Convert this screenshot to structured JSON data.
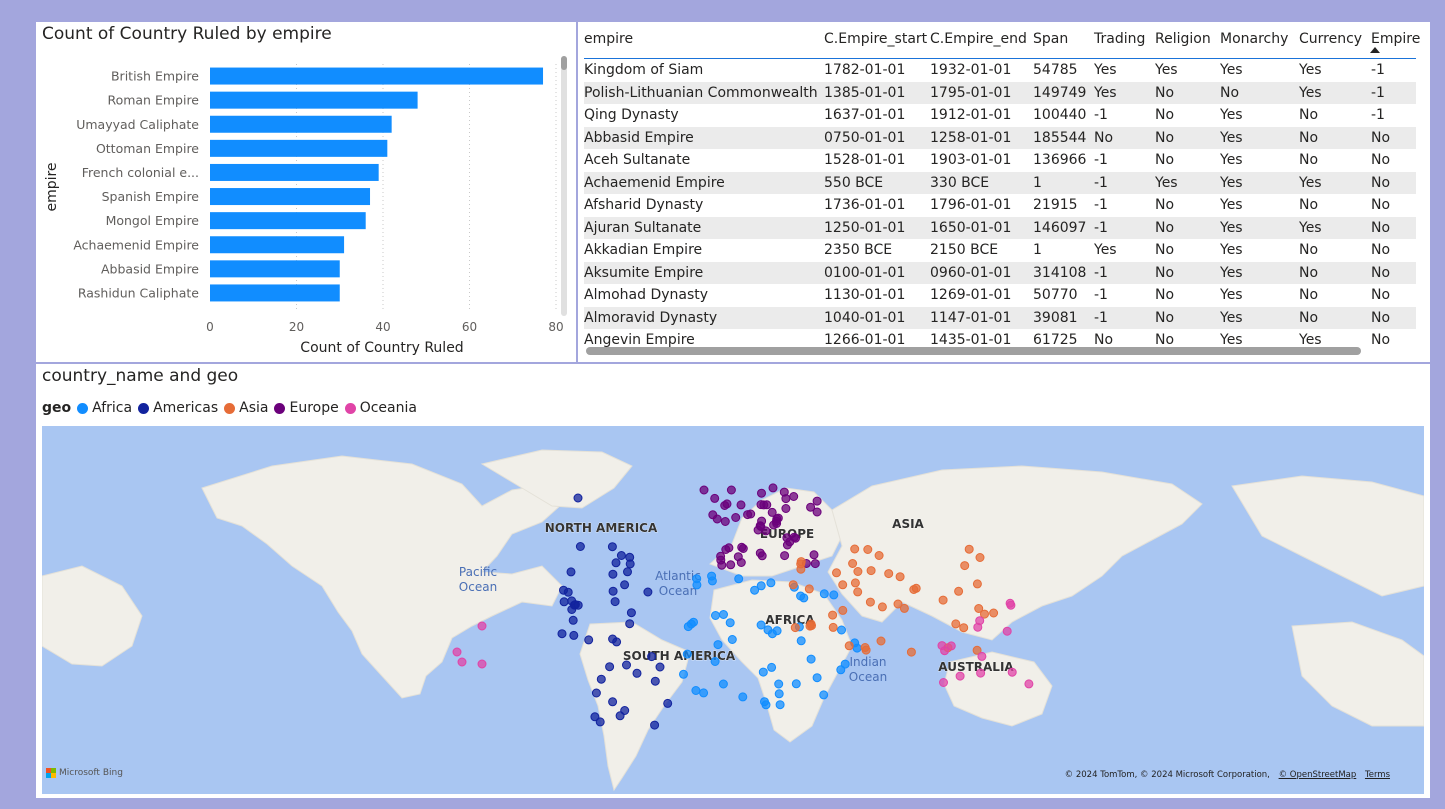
{
  "bar_chart": {
    "title": "Count of Country Ruled by empire",
    "chart_data": {
      "type": "bar",
      "orientation": "horizontal",
      "title": "Count of Country Ruled by empire",
      "xlabel": "Count of Country Ruled",
      "ylabel": "empire",
      "categories": [
        "British Empire",
        "Roman Empire",
        "Umayyad Caliphate",
        "Ottoman Empire",
        "French colonial e...",
        "Spanish Empire",
        "Mongol Empire",
        "Achaemenid Empire",
        "Abbasid Empire",
        "Rashidun Caliphate"
      ],
      "values": [
        77,
        48,
        42,
        41,
        39,
        37,
        36,
        31,
        30,
        30
      ],
      "xlim": [
        0,
        80
      ],
      "xticks": [
        "0",
        "20",
        "40",
        "60",
        "80"
      ],
      "grid": true,
      "bar_color": "#118dff"
    }
  },
  "table": {
    "columns": [
      "empire",
      "C.Empire_start",
      "C.Empire_end",
      "Span",
      "Trading",
      "Religion",
      "Monarchy",
      "Currency",
      "Empire"
    ],
    "rows": [
      [
        "Kingdom of Siam",
        "1782-01-01",
        "1932-01-01",
        "54785",
        "Yes",
        "Yes",
        "Yes",
        "Yes",
        "-1"
      ],
      [
        "Polish-Lithuanian Commonwealth",
        "1385-01-01",
        "1795-01-01",
        "149749",
        "Yes",
        "No",
        "No",
        "Yes",
        "-1"
      ],
      [
        "Qing Dynasty",
        "1637-01-01",
        "1912-01-01",
        "100440",
        "-1",
        "No",
        "Yes",
        "No",
        "-1"
      ],
      [
        "Abbasid Empire",
        "0750-01-01",
        "1258-01-01",
        "185544",
        "No",
        "No",
        "Yes",
        "No",
        "No"
      ],
      [
        "Aceh Sultanate",
        "1528-01-01",
        "1903-01-01",
        "136966",
        "-1",
        "No",
        "Yes",
        "No",
        "No"
      ],
      [
        "Achaemenid Empire",
        "550 BCE",
        "330 BCE",
        "1",
        "-1",
        "Yes",
        "Yes",
        "Yes",
        "No"
      ],
      [
        "Afsharid Dynasty",
        "1736-01-01",
        "1796-01-01",
        "21915",
        "-1",
        "No",
        "Yes",
        "No",
        "No"
      ],
      [
        "Ajuran Sultanate",
        "1250-01-01",
        "1650-01-01",
        "146097",
        "-1",
        "No",
        "Yes",
        "Yes",
        "No"
      ],
      [
        "Akkadian Empire",
        "2350 BCE",
        "2150 BCE",
        "1",
        "Yes",
        "No",
        "Yes",
        "No",
        "No"
      ],
      [
        "Aksumite Empire",
        "0100-01-01",
        "0960-01-01",
        "314108",
        "-1",
        "No",
        "Yes",
        "No",
        "No"
      ],
      [
        "Almohad Dynasty",
        "1130-01-01",
        "1269-01-01",
        "50770",
        "-1",
        "No",
        "Yes",
        "No",
        "No"
      ],
      [
        "Almoravid Dynasty",
        "1040-01-01",
        "1147-01-01",
        "39081",
        "-1",
        "No",
        "Yes",
        "No",
        "No"
      ],
      [
        "Angevin Empire",
        "1266-01-01",
        "1435-01-01",
        "61725",
        "No",
        "No",
        "Yes",
        "Yes",
        "No"
      ]
    ]
  },
  "map": {
    "title": "country_name and geo",
    "legend_title": "geo",
    "legend": [
      {
        "name": "Africa",
        "color": "#118dff"
      },
      {
        "name": "Americas",
        "color": "#12239e"
      },
      {
        "name": "Asia",
        "color": "#e66c37"
      },
      {
        "name": "Europe",
        "color": "#6b007b"
      },
      {
        "name": "Oceania",
        "color": "#e044a7"
      }
    ],
    "labels": {
      "north_america": "NORTH AMERICA",
      "south_america": "SOUTH AMERICA",
      "europe": "EUROPE",
      "asia": "ASIA",
      "africa": "AFRICA",
      "australia": "AUSTRALIA",
      "pacific": "Pacific Ocean",
      "atlantic": "Atlantic Ocean",
      "indian": "Indian Ocean"
    },
    "bing": "Microsoft Bing",
    "copyright": "© 2024 TomTom, © 2024 Microsoft Corporation,",
    "osm": "© OpenStreetMap",
    "terms": "Terms"
  }
}
